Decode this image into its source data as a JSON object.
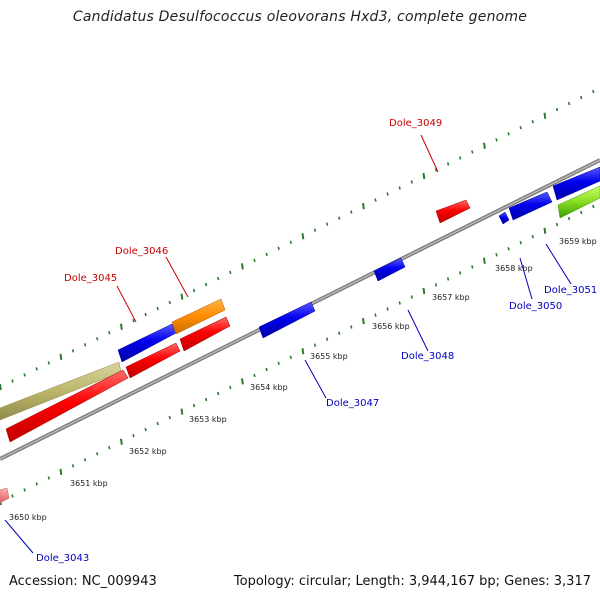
{
  "title": "Candidatus Desulfococcus oleovorans Hxd3, complete genome",
  "footer": {
    "accession": "Accession: NC_009943",
    "summary": "Topology: circular; Length: 3,944,167 bp; Genes: 3,317"
  },
  "colors": {
    "backbone": "#8c8c8c",
    "tick_major": "#1a6e1a",
    "tick_minor": "#2c8a2c",
    "label_forward": "#cc0000",
    "label_reverse": "#0000bb",
    "red": "#ff0000",
    "blue": "#0000ee",
    "orange": "#ff8c00",
    "khaki": "#bdb76b",
    "green": "#66cc00",
    "pink": "#f08080"
  },
  "ticks": {
    "labels": [
      "3650 kbp",
      "3651 kbp",
      "3652 kbp",
      "3653 kbp",
      "3654 kbp",
      "3655 kbp",
      "3656 kbp",
      "3657 kbp",
      "3658 kbp",
      "3659 kbp"
    ]
  },
  "forward_labels": [
    "Dole_3045",
    "Dole_3046",
    "Dole_3049"
  ],
  "reverse_labels": [
    "Dole_3043",
    "Dole_3047",
    "Dole_3048",
    "Dole_3050",
    "Dole_3051"
  ]
}
